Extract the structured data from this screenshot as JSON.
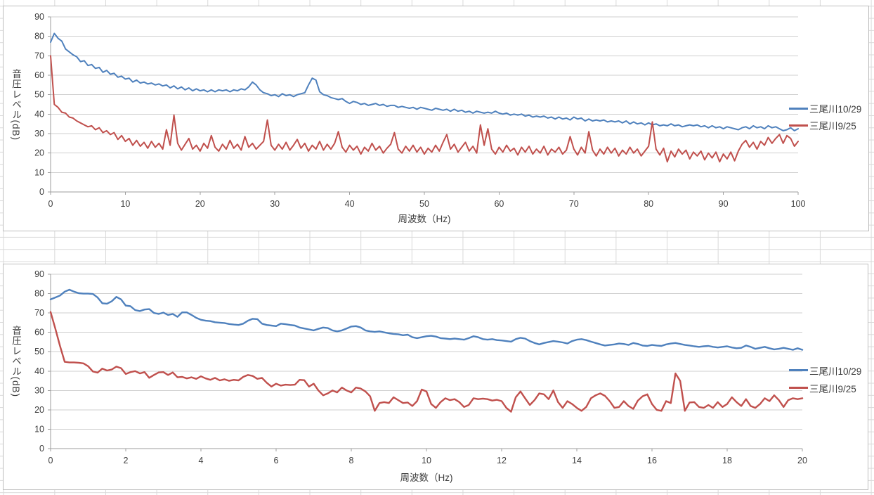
{
  "colors": {
    "series_blue": "#4F81BD",
    "series_red": "#C0504D",
    "gridline": "#cfcfcf",
    "axis": "#9e9e9e",
    "tick_text": "#3d3d3d",
    "sheet_grid": "#d9d9d9",
    "chart_border": "#bdbdbd"
  },
  "chart_data": [
    {
      "id": "top",
      "type": "line",
      "title": "",
      "xlabel": "周波数（Hz)",
      "ylabel": "音圧レベル(dB)",
      "xlim": [
        0,
        100
      ],
      "ylim": [
        0,
        90
      ],
      "x_ticks": [
        0,
        10,
        20,
        30,
        40,
        50,
        60,
        70,
        80,
        90,
        100
      ],
      "y_ticks": [
        0,
        10,
        20,
        30,
        40,
        50,
        60,
        70,
        80,
        90
      ],
      "grid": "horizontal-major",
      "legend_position": "right-inside",
      "series": [
        {
          "name": "三尾川10/29",
          "color": "#4F81BD",
          "x_start": 0,
          "x_step": 0.5,
          "values": [
            77,
            81.5,
            79,
            77.5,
            73.5,
            72,
            70.5,
            69.5,
            67,
            67.5,
            65,
            65.5,
            63.5,
            64,
            61.5,
            62.5,
            60.5,
            61,
            59,
            59.5,
            58,
            58.5,
            56.5,
            57.5,
            56,
            56.5,
            55.5,
            56,
            55,
            55.5,
            54.5,
            55,
            53.5,
            54.5,
            53,
            54,
            52.5,
            53.5,
            52,
            53,
            52,
            52.5,
            51.5,
            52.5,
            51.5,
            52.5,
            52,
            52.5,
            51.5,
            52.5,
            52,
            53,
            52.5,
            54,
            56.5,
            55,
            52.5,
            51,
            50.5,
            49.5,
            50,
            49,
            50.5,
            49.5,
            50,
            49,
            50,
            50.5,
            51,
            55,
            58.5,
            57.5,
            51.5,
            50,
            49.5,
            48.5,
            48,
            47.5,
            48,
            46.5,
            45.5,
            46.5,
            46,
            45,
            45.5,
            44.5,
            45,
            45.5,
            44.5,
            45,
            44,
            44.5,
            44.5,
            43.5,
            44,
            43.5,
            43,
            43.5,
            42.5,
            43.5,
            43,
            42.5,
            42,
            43,
            42.5,
            42,
            42.5,
            41.5,
            42.5,
            41.5,
            42,
            41,
            41.5,
            40.5,
            41.5,
            41,
            40.5,
            41,
            40.5,
            41.5,
            40.5,
            40,
            40.5,
            39.5,
            40,
            39.5,
            40,
            39,
            39.5,
            38.5,
            39,
            38.5,
            39,
            38,
            38.5,
            37.5,
            38.5,
            37.5,
            38,
            37,
            38.5,
            37.5,
            38,
            36.5,
            37.5,
            36.5,
            37,
            36.5,
            37,
            36,
            36.5,
            36,
            36.5,
            35.5,
            36.5,
            35,
            36,
            35,
            35.5,
            34.5,
            35.5,
            34.5,
            35,
            34,
            34.5,
            34,
            35,
            34,
            34.5,
            33.5,
            34,
            34.5,
            34,
            34.5,
            33.5,
            34,
            33,
            34,
            33,
            33.5,
            32.5,
            33.5,
            33,
            32.5,
            32,
            33,
            33.5,
            32.5,
            34,
            33,
            33.5,
            32.5,
            34,
            33,
            33.5,
            32.5,
            31.5,
            32,
            33,
            31.5,
            32.5
          ]
        },
        {
          "name": "三尾川9/25",
          "color": "#C0504D",
          "x_start": 0,
          "x_step": 0.5,
          "values": [
            70,
            45,
            43.5,
            41,
            40.5,
            38.5,
            38,
            36.5,
            35.5,
            34.5,
            33.5,
            34,
            32,
            33,
            30.5,
            31.5,
            29.5,
            30.5,
            27,
            29,
            26,
            27.5,
            24,
            26.5,
            23.5,
            25.5,
            22.5,
            26,
            23,
            25,
            22,
            32,
            24,
            39.5,
            25,
            21.5,
            24.5,
            27.5,
            22,
            24,
            21,
            25,
            22.5,
            29,
            23,
            21,
            24.5,
            22,
            26.5,
            22.5,
            24.5,
            21.5,
            28.5,
            23,
            25,
            22,
            24,
            26,
            37,
            24,
            21.5,
            24.5,
            22,
            25.5,
            21.5,
            24,
            27,
            22.5,
            25,
            21,
            24,
            22,
            26,
            21.5,
            24.5,
            22,
            25,
            31,
            23,
            20.5,
            24,
            21.5,
            23.5,
            19.5,
            23,
            21,
            25,
            21.5,
            23.5,
            20,
            22.5,
            24.5,
            30.5,
            22,
            20,
            23.5,
            21,
            24,
            20.5,
            23,
            19.5,
            22.5,
            20.5,
            24,
            21,
            25.5,
            29.5,
            22,
            24.5,
            20.5,
            23,
            25.5,
            21,
            23.5,
            20,
            34.5,
            24,
            32.5,
            22,
            19.5,
            23,
            20.5,
            24,
            21,
            22.5,
            19,
            23,
            20.5,
            23.5,
            19.5,
            22,
            20,
            23.5,
            19,
            22,
            20.5,
            23,
            19.5,
            21.5,
            28.5,
            22,
            19,
            23,
            20,
            31,
            21.5,
            18.5,
            22,
            19.5,
            23,
            20,
            22.5,
            18.5,
            21.5,
            19.5,
            23,
            20,
            22,
            18.5,
            21,
            23.5,
            36,
            22,
            19,
            22.5,
            15.5,
            21,
            18,
            22,
            19.5,
            21.5,
            17,
            20.5,
            18.5,
            21,
            16.5,
            20,
            17.5,
            20.5,
            15.5,
            19.5,
            17,
            20.5,
            16,
            21,
            24.5,
            26.5,
            23,
            25.5,
            22,
            26,
            24,
            28,
            25,
            27.5,
            29.5,
            25,
            29,
            27.5,
            23.5,
            26
          ]
        }
      ]
    },
    {
      "id": "bottom",
      "type": "line",
      "title": "",
      "xlabel": "周波数（Hz)",
      "ylabel": "音圧レベル(dB)",
      "xlim": [
        0,
        20
      ],
      "ylim": [
        0,
        90
      ],
      "x_ticks": [
        0,
        2,
        4,
        6,
        8,
        10,
        12,
        14,
        16,
        18,
        20
      ],
      "y_ticks": [
        0,
        10,
        20,
        30,
        40,
        50,
        60,
        70,
        80,
        90
      ],
      "grid": "horizontal-major",
      "legend_position": "right-inside",
      "series": [
        {
          "name": "三尾川10/29",
          "color": "#4F81BD",
          "x_start": 0,
          "x_step": 0.125,
          "values": [
            77,
            78,
            79,
            81,
            82,
            81,
            80.2,
            80,
            80,
            79.8,
            78,
            75,
            74.8,
            76,
            78.3,
            77,
            73.8,
            73.5,
            71.5,
            71,
            71.8,
            72,
            70,
            69.5,
            70.2,
            69,
            69.5,
            68,
            70.3,
            70.3,
            69,
            67.5,
            66.5,
            66,
            65.8,
            65.2,
            65,
            64.8,
            64.3,
            64,
            63.8,
            64.5,
            66,
            67,
            66.8,
            64.5,
            63.8,
            63.5,
            63.2,
            64.5,
            64.2,
            63.8,
            63.5,
            62.5,
            62,
            61.5,
            61,
            61.8,
            62.5,
            62.2,
            61,
            60.5,
            61,
            62,
            63,
            63.2,
            62.5,
            61,
            60.5,
            60.2,
            60.5,
            60,
            59.5,
            59.2,
            59,
            58.5,
            58.8,
            57.5,
            57,
            57.5,
            58,
            58.2,
            57.8,
            57,
            56.8,
            56.5,
            56.8,
            56.5,
            56.2,
            57,
            58,
            57.5,
            56.5,
            56.2,
            56.5,
            56,
            55.8,
            55.5,
            55.2,
            56.5,
            57.2,
            56.8,
            55.5,
            54.5,
            53.8,
            54.5,
            55,
            55.5,
            55.2,
            54.8,
            54.2,
            55.5,
            56.2,
            56.5,
            56,
            55.2,
            54.5,
            53.8,
            53.2,
            53.5,
            53.8,
            54.2,
            54,
            53.5,
            54.5,
            54,
            53.2,
            53,
            53.5,
            53.2,
            53,
            53.8,
            54.2,
            54.5,
            54,
            53.5,
            53.2,
            52.8,
            52.5,
            52.8,
            53,
            52.5,
            52.2,
            52.5,
            52.8,
            52.2,
            51.8,
            52,
            53.2,
            52.5,
            51.5,
            52,
            52.5,
            51.8,
            51.2,
            51.5,
            52,
            51.5,
            51,
            51.8,
            51
          ]
        },
        {
          "name": "三尾川9/25",
          "color": "#C0504D",
          "x_start": 0,
          "x_step": 0.125,
          "values": [
            70.5,
            62,
            53,
            44.8,
            44.5,
            44.5,
            44.3,
            44,
            42.5,
            39.8,
            39.2,
            41.3,
            40.3,
            40.8,
            42.3,
            41.5,
            38.5,
            39.5,
            40,
            38.8,
            39.5,
            36.5,
            38,
            39.3,
            39.5,
            38,
            39.3,
            36.8,
            37,
            36.2,
            36.8,
            36,
            37.3,
            36.2,
            35.5,
            36.5,
            35.2,
            35.8,
            35,
            35.5,
            35.2,
            37,
            38,
            37.5,
            36,
            36.5,
            34,
            32,
            33.5,
            32.5,
            33,
            32.8,
            33,
            35.5,
            35.3,
            32,
            33.5,
            30,
            27.5,
            28.5,
            30,
            29,
            31.5,
            30,
            29,
            31.5,
            31,
            29.5,
            27,
            19.5,
            23.5,
            24,
            23.5,
            26.5,
            25,
            23.5,
            23.8,
            22,
            24.5,
            30.5,
            29.5,
            23,
            21,
            24,
            26,
            25,
            25.5,
            24,
            21.5,
            22.5,
            26,
            25.5,
            25.8,
            25.5,
            24.8,
            25.2,
            24.5,
            21,
            19,
            26.5,
            29.5,
            26,
            22.5,
            25,
            28.5,
            28,
            25.5,
            30,
            24,
            21,
            24.5,
            23,
            21,
            19.5,
            21.5,
            26,
            27.5,
            28.5,
            27.2,
            24.5,
            21,
            21.5,
            24.5,
            22,
            20.5,
            24.8,
            27,
            28,
            23,
            20,
            19.5,
            24.5,
            23.5,
            38.8,
            35,
            19.5,
            23.8,
            24,
            21.5,
            21,
            22.5,
            21,
            24,
            21.5,
            23,
            26.5,
            24,
            22,
            25.5,
            22,
            21,
            23,
            26,
            24.5,
            27.5,
            25,
            21.5,
            25,
            26,
            25.5,
            26
          ]
        }
      ]
    }
  ]
}
